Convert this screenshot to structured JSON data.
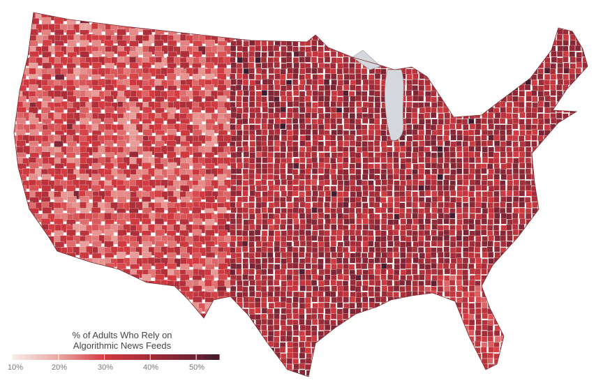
{
  "chart_data": {
    "type": "choropleth",
    "geography": "US counties (contiguous states)",
    "legend": {
      "title_line1": "% of Adults Who Rely on",
      "title_line2": "Algorithmic News Feeds",
      "ticks": [
        "10%",
        "20%",
        "30%",
        "40%",
        "50%"
      ],
      "tick_values": [
        10,
        20,
        30,
        40,
        50
      ],
      "range": [
        10,
        55
      ],
      "placement": "bottom-left"
    },
    "color_scale": {
      "stops": [
        10,
        20,
        30,
        40,
        50,
        55
      ],
      "colors": [
        "#f4ebe8",
        "#eaa29d",
        "#d23a40",
        "#a02b37",
        "#6c2234",
        "#3b1a2d"
      ]
    },
    "pattern": "Lower shares (15–30%) across the Mountain West and Southwest; higher shares (35–55%) across the Great Plains, Midwest, South and Northeast",
    "water_color": "#d4d7db"
  }
}
